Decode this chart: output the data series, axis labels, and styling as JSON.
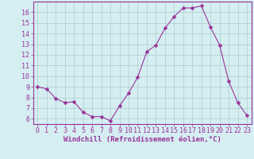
{
  "x": [
    0,
    1,
    2,
    3,
    4,
    5,
    6,
    7,
    8,
    9,
    10,
    11,
    12,
    13,
    14,
    15,
    16,
    17,
    18,
    19,
    20,
    21,
    22,
    23
  ],
  "y": [
    9.0,
    8.8,
    7.9,
    7.5,
    7.6,
    6.6,
    6.2,
    6.2,
    5.8,
    7.2,
    8.4,
    9.9,
    12.3,
    12.9,
    14.5,
    15.6,
    16.4,
    16.4,
    16.6,
    14.6,
    12.9,
    9.5,
    7.5,
    6.3
  ],
  "line_color": "#993399",
  "marker_color": "#993399",
  "bg_color": "#d5eef2",
  "grid_color": "#aacccc",
  "axis_color": "#993399",
  "tick_color": "#993399",
  "xlabel": "Windchill (Refroidissement éolien,°C)",
  "xlim": [
    -0.5,
    23.5
  ],
  "ylim": [
    5.5,
    17.0
  ],
  "yticks": [
    6,
    7,
    8,
    9,
    10,
    11,
    12,
    13,
    14,
    15,
    16
  ],
  "xticks": [
    0,
    1,
    2,
    3,
    4,
    5,
    6,
    7,
    8,
    9,
    10,
    11,
    12,
    13,
    14,
    15,
    16,
    17,
    18,
    19,
    20,
    21,
    22,
    23
  ],
  "xlabel_fontsize": 6.5,
  "tick_fontsize": 6.0,
  "marker_size": 2.5,
  "linewidth": 0.8
}
